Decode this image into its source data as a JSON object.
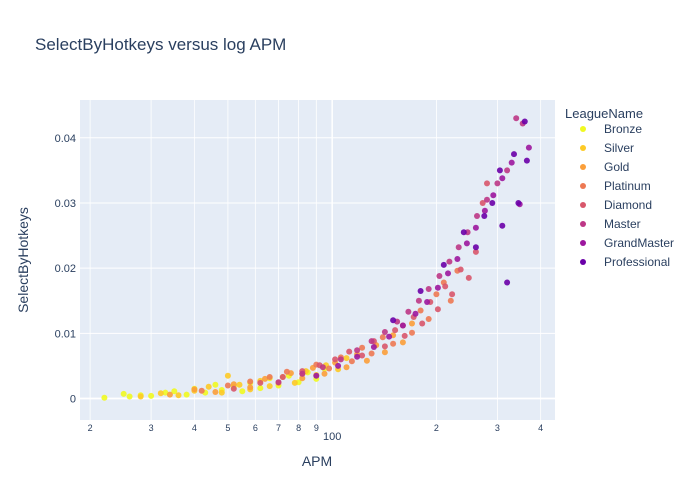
{
  "chart_data": {
    "type": "scatter",
    "title": "SelectByHotkeys versus log APM",
    "xlabel": "APM",
    "ylabel": "SelectByHotkeys",
    "x_scale": "log",
    "xlim": [
      18.7,
      440
    ],
    "ylim": [
      -0.0033,
      0.0458
    ],
    "x_ticks": [
      {
        "value": 20,
        "label": "2"
      },
      {
        "value": 30,
        "label": "3"
      },
      {
        "value": 40,
        "label": "4"
      },
      {
        "value": 50,
        "label": "5"
      },
      {
        "value": 60,
        "label": "6"
      },
      {
        "value": 70,
        "label": "7"
      },
      {
        "value": 80,
        "label": "8"
      },
      {
        "value": 90,
        "label": "9"
      },
      {
        "value": 100,
        "label": "100"
      },
      {
        "value": 200,
        "label": "2"
      },
      {
        "value": 300,
        "label": "3"
      },
      {
        "value": 400,
        "label": "4"
      }
    ],
    "y_ticks": [
      {
        "value": 0,
        "label": "0"
      },
      {
        "value": 0.01,
        "label": "0.01"
      },
      {
        "value": 0.02,
        "label": "0.02"
      },
      {
        "value": 0.03,
        "label": "0.03"
      },
      {
        "value": 0.04,
        "label": "0.04"
      }
    ],
    "grid": true,
    "legend": {
      "title": "LeagueName",
      "placement": "right"
    },
    "series": [
      {
        "name": "Bronze",
        "color": "#f0f921",
        "points": [
          [
            22,
            0.0001
          ],
          [
            25,
            0.0007
          ],
          [
            26,
            0.0003
          ],
          [
            28,
            0.0005
          ],
          [
            30,
            0.0004
          ],
          [
            33,
            0.0009
          ],
          [
            35,
            0.0011
          ],
          [
            38,
            0.0006
          ],
          [
            40,
            0.0015
          ],
          [
            43,
            0.0009
          ],
          [
            46,
            0.0021
          ],
          [
            48,
            0.0013
          ],
          [
            52,
            0.0018
          ],
          [
            55,
            0.0011
          ],
          [
            58,
            0.0024
          ],
          [
            62,
            0.0016
          ],
          [
            66,
            0.0031
          ],
          [
            70,
            0.002
          ],
          [
            75,
            0.0035
          ],
          [
            80,
            0.0025
          ],
          [
            85,
            0.004
          ],
          [
            90,
            0.003
          ],
          [
            95,
            0.0046
          ]
        ]
      },
      {
        "name": "Silver",
        "color": "#fdca26",
        "points": [
          [
            28,
            0.0003
          ],
          [
            32,
            0.0008
          ],
          [
            36,
            0.0005
          ],
          [
            40,
            0.0012
          ],
          [
            44,
            0.0018
          ],
          [
            48,
            0.0009
          ],
          [
            50,
            0.0035
          ],
          [
            54,
            0.0021
          ],
          [
            58,
            0.0014
          ],
          [
            62,
            0.0027
          ],
          [
            66,
            0.0019
          ],
          [
            72,
            0.0033
          ],
          [
            78,
            0.0024
          ],
          [
            84,
            0.0042
          ],
          [
            90,
            0.0036
          ],
          [
            96,
            0.0051
          ],
          [
            104,
            0.0045
          ],
          [
            110,
            0.0062
          ]
        ]
      },
      {
        "name": "Gold",
        "color": "#fb9f3a",
        "points": [
          [
            34,
            0.0006
          ],
          [
            40,
            0.0014
          ],
          [
            46,
            0.001
          ],
          [
            52,
            0.0022
          ],
          [
            58,
            0.0017
          ],
          [
            64,
            0.003
          ],
          [
            70,
            0.0024
          ],
          [
            76,
            0.0039
          ],
          [
            82,
            0.0031
          ],
          [
            88,
            0.0047
          ],
          [
            95,
            0.0038
          ],
          [
            102,
            0.0055
          ],
          [
            110,
            0.0048
          ],
          [
            118,
            0.0068
          ],
          [
            126,
            0.0058
          ],
          [
            134,
            0.0082
          ],
          [
            142,
            0.0071
          ],
          [
            150,
            0.0097
          ],
          [
            160,
            0.0086
          ],
          [
            170,
            0.0115
          ]
        ]
      },
      {
        "name": "Platinum",
        "color": "#ed7953",
        "points": [
          [
            42,
            0.0012
          ],
          [
            50,
            0.002
          ],
          [
            58,
            0.0026
          ],
          [
            66,
            0.0033
          ],
          [
            74,
            0.0041
          ],
          [
            82,
            0.0038
          ],
          [
            90,
            0.0052
          ],
          [
            98,
            0.0046
          ],
          [
            106,
            0.0063
          ],
          [
            114,
            0.0057
          ],
          [
            122,
            0.0078
          ],
          [
            130,
            0.0069
          ],
          [
            140,
            0.0094
          ],
          [
            150,
            0.0084
          ],
          [
            160,
            0.0112
          ],
          [
            170,
            0.0101
          ],
          [
            180,
            0.0135
          ],
          [
            190,
            0.0122
          ],
          [
            200,
            0.016
          ],
          [
            210,
            0.0178
          ],
          [
            220,
            0.015
          ],
          [
            230,
            0.0196
          ]
        ]
      },
      {
        "name": "Diamond",
        "color": "#d8576b",
        "points": [
          [
            52,
            0.0015
          ],
          [
            62,
            0.0024
          ],
          [
            72,
            0.0033
          ],
          [
            82,
            0.0042
          ],
          [
            92,
            0.0051
          ],
          [
            102,
            0.006
          ],
          [
            112,
            0.0072
          ],
          [
            122,
            0.0066
          ],
          [
            132,
            0.0088
          ],
          [
            142,
            0.008
          ],
          [
            152,
            0.0105
          ],
          [
            162,
            0.0096
          ],
          [
            172,
            0.0125
          ],
          [
            182,
            0.0115
          ],
          [
            192,
            0.0148
          ],
          [
            202,
            0.0137
          ],
          [
            212,
            0.0172
          ],
          [
            222,
            0.016
          ],
          [
            235,
            0.0198
          ],
          [
            248,
            0.0185
          ],
          [
            260,
            0.0225
          ],
          [
            272,
            0.03
          ],
          [
            280,
            0.033
          ]
        ]
      },
      {
        "name": "Master",
        "color": "#bd3786",
        "points": [
          [
            70,
            0.0025
          ],
          [
            82,
            0.0038
          ],
          [
            94,
            0.0048
          ],
          [
            106,
            0.006
          ],
          [
            118,
            0.0074
          ],
          [
            130,
            0.0088
          ],
          [
            142,
            0.0102
          ],
          [
            154,
            0.0118
          ],
          [
            166,
            0.0133
          ],
          [
            178,
            0.015
          ],
          [
            190,
            0.0168
          ],
          [
            204,
            0.0188
          ],
          [
            218,
            0.021
          ],
          [
            232,
            0.0232
          ],
          [
            246,
            0.0255
          ],
          [
            262,
            0.028
          ],
          [
            280,
            0.0305
          ],
          [
            300,
            0.033
          ],
          [
            320,
            0.035
          ],
          [
            340,
            0.043
          ],
          [
            355,
            0.0422
          ]
        ]
      },
      {
        "name": "GrandMaster",
        "color": "#9c179e",
        "points": [
          [
            90,
            0.0035
          ],
          [
            104,
            0.005
          ],
          [
            118,
            0.0064
          ],
          [
            132,
            0.0079
          ],
          [
            146,
            0.0095
          ],
          [
            160,
            0.0112
          ],
          [
            174,
            0.013
          ],
          [
            188,
            0.0148
          ],
          [
            202,
            0.017
          ],
          [
            216,
            0.0192
          ],
          [
            230,
            0.0214
          ],
          [
            245,
            0.0238
          ],
          [
            260,
            0.0262
          ],
          [
            276,
            0.0288
          ],
          [
            292,
            0.0312
          ],
          [
            310,
            0.0338
          ],
          [
            330,
            0.0362
          ],
          [
            348,
            0.0298
          ],
          [
            370,
            0.0385
          ]
        ]
      },
      {
        "name": "Professional",
        "color": "#6a00a8",
        "points": [
          [
            150,
            0.012
          ],
          [
            180,
            0.0165
          ],
          [
            210,
            0.0205
          ],
          [
            240,
            0.0255
          ],
          [
            260,
            0.0232
          ],
          [
            275,
            0.028
          ],
          [
            290,
            0.03
          ],
          [
            305,
            0.035
          ],
          [
            310,
            0.0265
          ],
          [
            320,
            0.0178
          ],
          [
            335,
            0.0375
          ],
          [
            345,
            0.03
          ],
          [
            360,
            0.0425
          ],
          [
            365,
            0.0365
          ]
        ]
      }
    ]
  }
}
